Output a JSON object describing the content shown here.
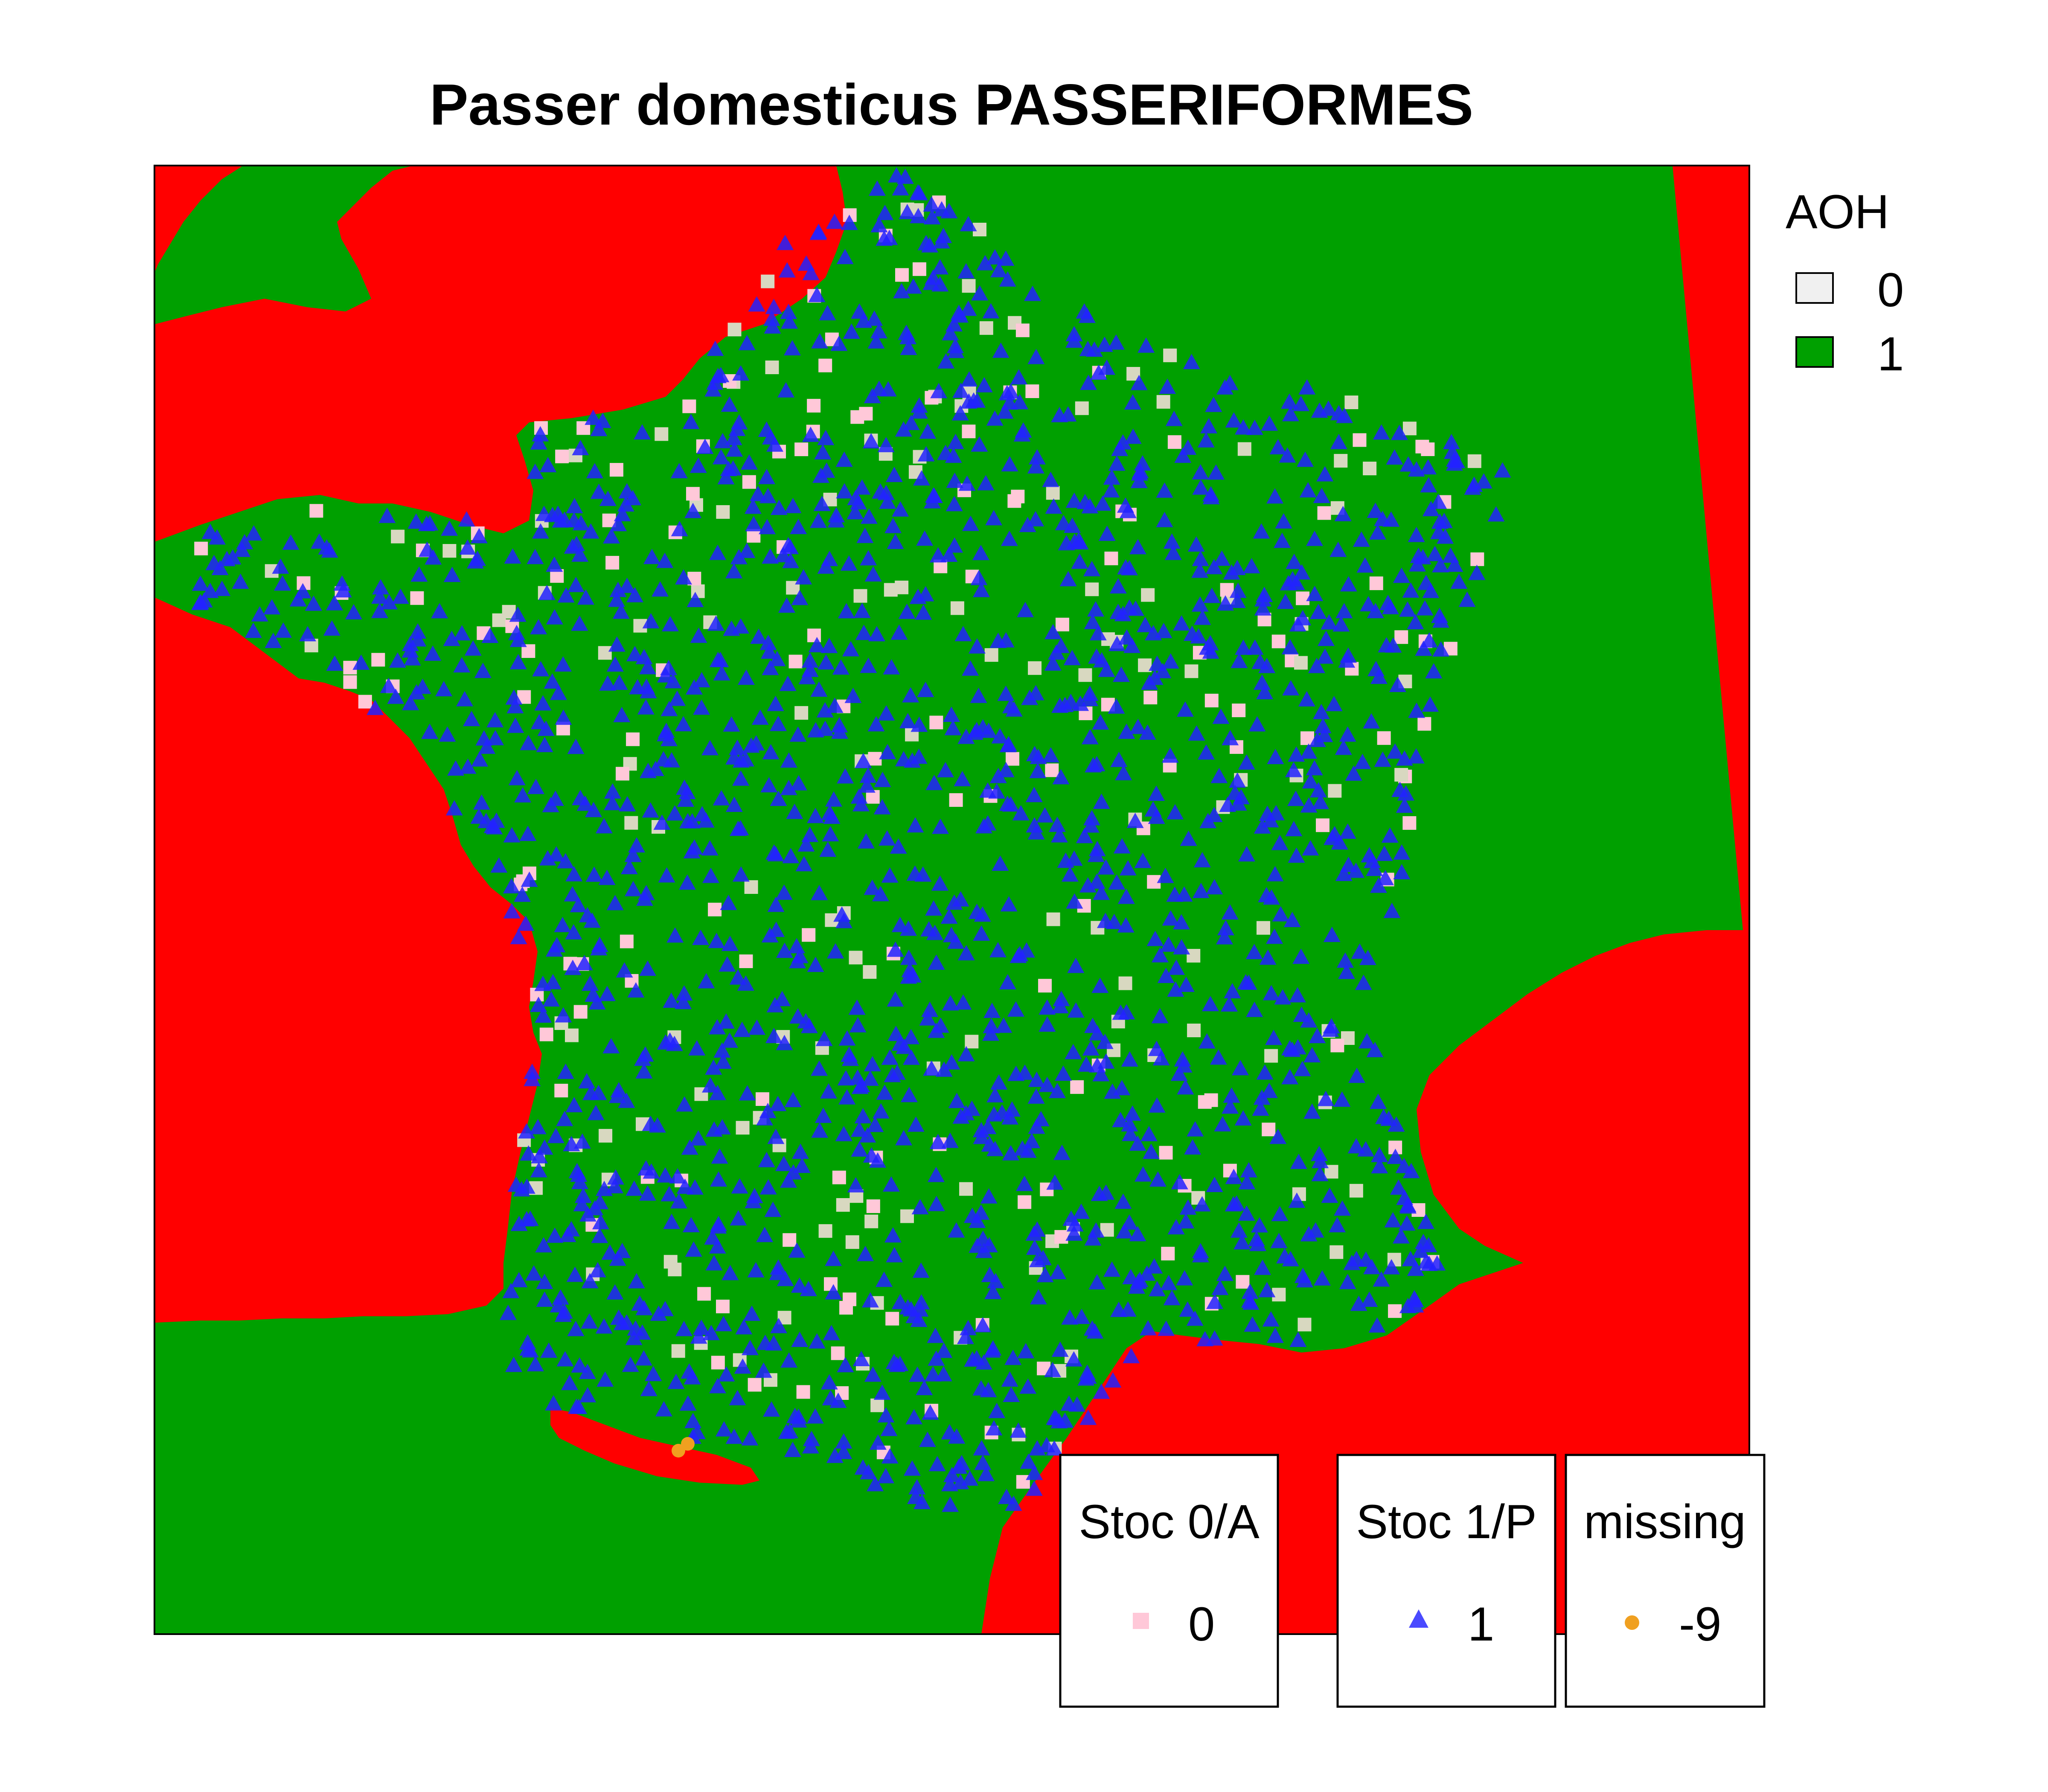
{
  "title": "Passer domesticus PASSERIFORMES",
  "colors": {
    "habitat": "#00a000",
    "outside": "#ff0000",
    "stoc_present": "#2222ff",
    "stoc_absent": "#ffc8d8",
    "absent_faded": "#d8d8c0",
    "missing": "#f0a020"
  },
  "aoh_legend": {
    "title": "AOH",
    "items": [
      {
        "label": "0",
        "color": "#f0f0f0"
      },
      {
        "label": "1",
        "color": "#00a000"
      }
    ]
  },
  "point_legends": [
    {
      "title": "Stoc 0/A",
      "label": "0",
      "symbol": "square-pink-icon"
    },
    {
      "title": "Stoc 1/P",
      "label": "1",
      "symbol": "triangle-blue-icon"
    },
    {
      "title": "missing",
      "label": "-9",
      "symbol": "circle-orange-icon"
    }
  ]
}
